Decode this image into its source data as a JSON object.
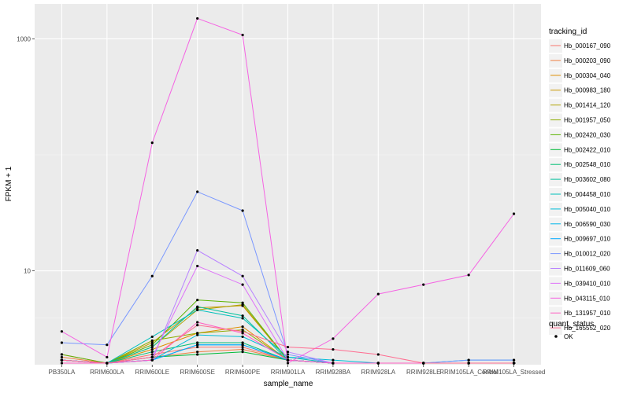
{
  "chart_data": {
    "type": "line",
    "xlabel": "sample_name",
    "ylabel": "FPKM + 1",
    "y_scale": "log10",
    "ylim": [
      1.55,
      2000
    ],
    "y_ticks": [
      {
        "value": 10,
        "label": "10"
      },
      {
        "value": 1000,
        "label": "1000"
      }
    ],
    "grid": true,
    "categories": [
      "PB350LA",
      "RRIM600LA",
      "RRIM600LE",
      "RRIM600SE",
      "RRIM600PE",
      "RRIM901LA",
      "RRIM928BA",
      "RRIM928LA",
      "RRIM928LE",
      "RRIM105LA_Control",
      "RRIM105LA_Stressed"
    ],
    "category_labels": [
      "PB350LA",
      "RRIM600LA",
      "RRIM600LE",
      "RRIM600SE",
      "RRIM600PE",
      "RRIM901LA",
      "RRIM928BA",
      "RRIM928LA",
      "RRIM928LE",
      "RRIM105LA_Control",
      "RRIM105LA_Stressed"
    ],
    "legend": {
      "title": "tracking_id",
      "placement": "right",
      "status_title": "quant_status",
      "status_label": "OK"
    },
    "series": [
      {
        "name": "Hb_000167_090",
        "color": "#F8766D",
        "values": [
          1.9,
          1.6,
          1.9,
          2.2,
          2.2,
          1.7,
          1.6,
          1.6,
          1.6,
          1.6,
          1.6
        ]
      },
      {
        "name": "Hb_000203_090",
        "color": "#EE8043",
        "values": [
          1.8,
          1.6,
          1.8,
          2.0,
          2.1,
          1.7,
          1.6,
          1.6,
          1.6,
          1.6,
          1.6
        ]
      },
      {
        "name": "Hb_000304_040",
        "color": "#DE8C00",
        "values": [
          1.7,
          1.6,
          2.1,
          2.9,
          3.3,
          1.7,
          1.6,
          1.6,
          1.6,
          1.6,
          1.6
        ]
      },
      {
        "name": "Hb_000983_180",
        "color": "#C99800",
        "values": [
          1.7,
          1.6,
          2.4,
          4.8,
          5.0,
          1.7,
          1.6,
          1.6,
          1.6,
          1.6,
          1.6
        ]
      },
      {
        "name": "Hb_001414_120",
        "color": "#AFA100",
        "values": [
          1.7,
          1.6,
          2.2,
          4.6,
          5.1,
          1.7,
          1.6,
          1.6,
          1.6,
          1.6,
          1.6
        ]
      },
      {
        "name": "Hb_001957_050",
        "color": "#8DAB00",
        "values": [
          1.7,
          1.6,
          2.5,
          2.9,
          3.1,
          1.7,
          1.6,
          1.6,
          1.6,
          1.6,
          1.6
        ]
      },
      {
        "name": "Hb_002420_030",
        "color": "#5BB300",
        "values": [
          1.9,
          1.6,
          2.3,
          5.6,
          5.3,
          1.7,
          1.6,
          1.6,
          1.6,
          1.6,
          1.6
        ]
      },
      {
        "name": "Hb_002422_010",
        "color": "#00BA38",
        "values": [
          1.7,
          1.6,
          1.8,
          1.9,
          2.0,
          1.7,
          1.6,
          1.6,
          1.6,
          1.6,
          1.6
        ]
      },
      {
        "name": "Hb_002548_010",
        "color": "#00BF74",
        "values": [
          1.7,
          1.6,
          2.0,
          2.4,
          2.4,
          1.7,
          1.6,
          1.6,
          1.6,
          1.6,
          1.6
        ]
      },
      {
        "name": "Hb_003602_080",
        "color": "#00C19B",
        "values": [
          1.7,
          1.6,
          2.2,
          4.9,
          4.1,
          1.7,
          1.6,
          1.6,
          1.6,
          1.6,
          1.6
        ]
      },
      {
        "name": "Hb_004458_010",
        "color": "#00C0BB",
        "values": [
          1.7,
          1.6,
          2.7,
          4.6,
          3.9,
          1.8,
          1.6,
          1.6,
          1.6,
          1.6,
          1.6
        ]
      },
      {
        "name": "Hb_005040_010",
        "color": "#00BCD8",
        "values": [
          1.7,
          1.6,
          1.7,
          2.8,
          2.7,
          1.8,
          1.7,
          1.6,
          1.6,
          1.7,
          1.7
        ]
      },
      {
        "name": "Hb_006590_030",
        "color": "#00B6EB",
        "values": [
          1.7,
          1.6,
          1.7,
          2.3,
          2.3,
          1.7,
          1.6,
          1.6,
          1.6,
          1.6,
          1.6
        ]
      },
      {
        "name": "Hb_009697_010",
        "color": "#00A9FF",
        "values": [
          1.7,
          1.6,
          1.7,
          2.3,
          2.3,
          1.7,
          1.6,
          1.6,
          1.6,
          1.6,
          1.6
        ]
      },
      {
        "name": "Hb_010012_020",
        "color": "#7997FF",
        "values": [
          2.4,
          2.3,
          9.0,
          48,
          33,
          1.9,
          1.6,
          1.6,
          1.6,
          1.7,
          1.7
        ]
      },
      {
        "name": "Hb_011609_060",
        "color": "#B983FF",
        "values": [
          1.7,
          1.6,
          1.7,
          15,
          9.0,
          2.0,
          1.6,
          1.6,
          1.6,
          1.6,
          1.6
        ]
      },
      {
        "name": "Hb_039410_010",
        "color": "#DE71F9",
        "values": [
          1.7,
          1.6,
          1.8,
          11,
          7.6,
          1.7,
          1.6,
          1.6,
          1.6,
          1.6,
          1.6
        ]
      },
      {
        "name": "Hb_043115_010",
        "color": "#F564E3",
        "values": [
          3.0,
          1.8,
          127,
          1500,
          1080,
          1.6,
          2.6,
          6.3,
          7.6,
          9.2,
          31
        ]
      },
      {
        "name": "Hb_131957_010",
        "color": "#FF61C3",
        "values": [
          1.6,
          1.6,
          1.7,
          3.6,
          2.9,
          1.7,
          1.6,
          1.6,
          1.6,
          1.6,
          1.6
        ]
      },
      {
        "name": "Hb_165552_020",
        "color": "#FF6C90",
        "values": [
          1.7,
          1.6,
          1.8,
          3.4,
          3.0,
          2.2,
          2.1,
          1.9,
          1.6,
          1.6,
          1.6
        ]
      }
    ]
  }
}
